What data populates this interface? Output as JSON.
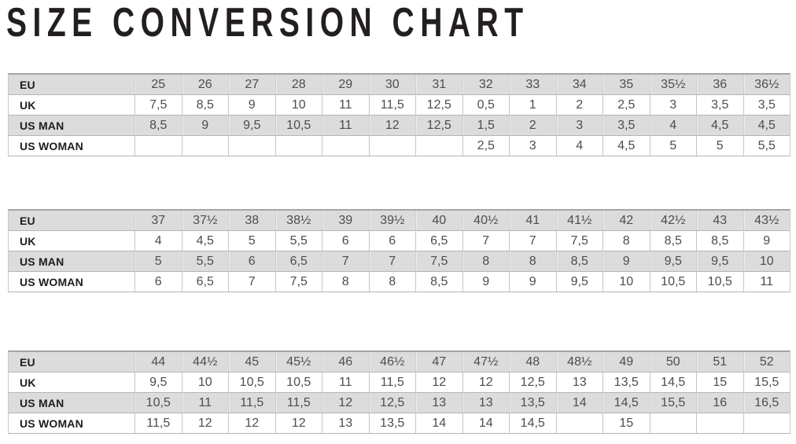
{
  "title": "SIZE CONVERSION CHART",
  "colors": {
    "title_text": "#231f20",
    "label_text": "#1d1d1b",
    "number_text": "#4d4d4d",
    "gray_row_background": "#dcdcdc",
    "grid_line": "#c6c6c6",
    "row_separator": "#b5b5b5",
    "table_top_border": "#a5a5a5"
  },
  "tables": [
    {
      "name": "sizes-eu-25-to-36half",
      "rows": [
        {
          "label": "EU",
          "values": [
            "25",
            "26",
            "27",
            "28",
            "29",
            "30",
            "31",
            "32",
            "33",
            "34",
            "35",
            "35½",
            "36",
            "36½"
          ]
        },
        {
          "label": "UK",
          "values": [
            "7,5",
            "8,5",
            "9",
            "10",
            "11",
            "11,5",
            "12,5",
            "0,5",
            "1",
            "2",
            "2,5",
            "3",
            "3,5",
            "3,5"
          ]
        },
        {
          "label": "US MAN",
          "values": [
            "8,5",
            "9",
            "9,5",
            "10,5",
            "11",
            "12",
            "12,5",
            "1,5",
            "2",
            "3",
            "3,5",
            "4",
            "4,5",
            "4,5"
          ]
        },
        {
          "label": "US WOMAN",
          "values": [
            "",
            "",
            "",
            "",
            "",
            "",
            "",
            "2,5",
            "3",
            "4",
            "4,5",
            "5",
            "5",
            "5,5"
          ]
        }
      ]
    },
    {
      "name": "sizes-eu-37-to-43half",
      "rows": [
        {
          "label": "EU",
          "values": [
            "37",
            "37½",
            "38",
            "38½",
            "39",
            "39½",
            "40",
            "40½",
            "41",
            "41½",
            "42",
            "42½",
            "43",
            "43½"
          ]
        },
        {
          "label": "UK",
          "values": [
            "4",
            "4,5",
            "5",
            "5,5",
            "6",
            "6",
            "6,5",
            "7",
            "7",
            "7,5",
            "8",
            "8,5",
            "8,5",
            "9"
          ]
        },
        {
          "label": "US MAN",
          "values": [
            "5",
            "5,5",
            "6",
            "6,5",
            "7",
            "7",
            "7,5",
            "8",
            "8",
            "8,5",
            "9",
            "9,5",
            "9,5",
            "10"
          ]
        },
        {
          "label": "US WOMAN",
          "values": [
            "6",
            "6,5",
            "7",
            "7,5",
            "8",
            "8",
            "8,5",
            "9",
            "9",
            "9,5",
            "10",
            "10,5",
            "10,5",
            "11"
          ]
        }
      ]
    },
    {
      "name": "sizes-eu-44-to-52",
      "rows": [
        {
          "label": "EU",
          "values": [
            "44",
            "44½",
            "45",
            "45½",
            "46",
            "46½",
            "47",
            "47½",
            "48",
            "48½",
            "49",
            "50",
            "51",
            "52"
          ]
        },
        {
          "label": "UK",
          "values": [
            "9,5",
            "10",
            "10,5",
            "10,5",
            "11",
            "11,5",
            "12",
            "12",
            "12,5",
            "13",
            "13,5",
            "14,5",
            "15",
            "15,5"
          ]
        },
        {
          "label": "US MAN",
          "values": [
            "10,5",
            "11",
            "11,5",
            "11,5",
            "12",
            "12,5",
            "13",
            "13",
            "13,5",
            "14",
            "14,5",
            "15,5",
            "16",
            "16,5"
          ]
        },
        {
          "label": "US WOMAN",
          "values": [
            "11,5",
            "12",
            "12",
            "12",
            "13",
            "13,5",
            "14",
            "14",
            "14,5",
            "",
            "15",
            "",
            "",
            ""
          ]
        }
      ]
    }
  ]
}
